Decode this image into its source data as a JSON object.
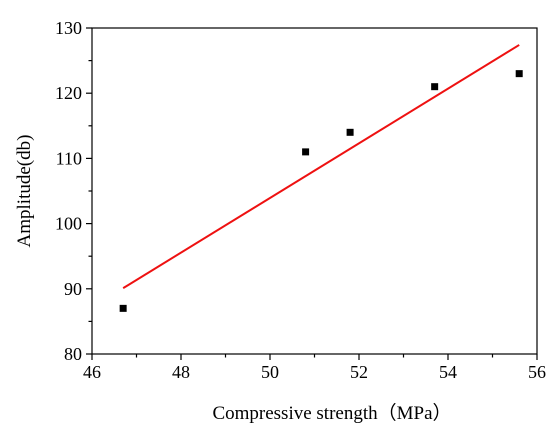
{
  "chart_data": {
    "type": "scatter",
    "xlabel": "Compressive strength（MPa）",
    "ylabel": "Amplitude(db)",
    "xlim": [
      46,
      56
    ],
    "ylim": [
      80,
      130
    ],
    "xticks": [
      46,
      48,
      50,
      52,
      54,
      56
    ],
    "yticks": [
      80,
      90,
      100,
      110,
      120,
      130
    ],
    "grid": false,
    "points": [
      {
        "x": 46.7,
        "y": 87
      },
      {
        "x": 50.8,
        "y": 111
      },
      {
        "x": 51.8,
        "y": 114
      },
      {
        "x": 53.7,
        "y": 121
      },
      {
        "x": 55.6,
        "y": 123
      }
    ],
    "fit_line": {
      "x": [
        46.7,
        55.6
      ],
      "y": [
        90.1,
        127.4
      ]
    },
    "colors": {
      "points": "#000000",
      "fit_line": "#ee1111"
    }
  }
}
